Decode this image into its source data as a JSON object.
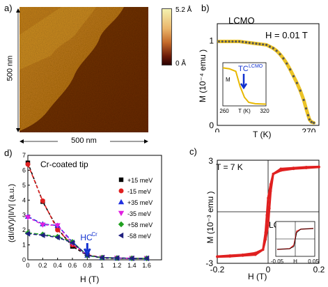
{
  "panel_a": {
    "label": "a)",
    "axis_y_label": "500 nm",
    "axis_x_label": "500 nm",
    "colorbar": {
      "top_label": "5.2 Å",
      "bottom_label": "0 Å"
    },
    "colors": {
      "high": "#f2f0a0",
      "mid": "#e89a2a",
      "low": "#3a0505"
    }
  },
  "panel_b": {
    "label": "b)",
    "title": "LCMO",
    "field_label": "H = 0.01 T",
    "ylabel": "M (10⁻⁴ emu )",
    "xlabel": "T (K)",
    "inset": {
      "ylabel": "M",
      "xlabel": "T (K)",
      "xticks": [
        "260",
        "320"
      ],
      "tc_label": "TC",
      "tc_sup": "LCMO"
    }
  },
  "panel_c": {
    "label": "c)",
    "temp_label": "T = 7 K",
    "sample_label": "LCMO",
    "ylabel": "M (10⁻³ emu )",
    "xlabel": "H (T)",
    "inset": {
      "xlabel": "H",
      "xticks": [
        "-0.05",
        "0.05"
      ]
    }
  },
  "panel_d": {
    "label": "d)",
    "title": "Cr-coated tip",
    "ylabel": "(dI/dV)/|I/V|  (a.u.)",
    "xlabel": "H (T)",
    "annotation": "HC",
    "annotation_sup": "Cr"
  },
  "chart_data": [
    {
      "type": "scatter",
      "panel": "b",
      "title": "LCMO",
      "xlabel": "T (K)",
      "ylabel": "M (10⁻⁴ emu )",
      "xlim": [
        0,
        300
      ],
      "ylim": [
        0,
        1.2
      ],
      "xticks": [
        "0",
        "270"
      ],
      "yticks": [
        "0",
        "1"
      ],
      "series": [
        {
          "x": [
            5,
            15,
            25,
            35,
            45,
            55,
            65,
            75,
            85,
            95,
            105,
            115,
            125,
            135,
            145,
            155,
            165,
            175,
            185,
            195,
            205,
            215,
            225,
            235,
            245,
            255,
            262,
            268,
            272,
            278,
            285
          ],
          "y": [
            0.99,
            0.99,
            0.99,
            0.99,
            0.99,
            0.99,
            0.99,
            0.985,
            0.98,
            0.975,
            0.97,
            0.965,
            0.96,
            0.955,
            0.95,
            0.93,
            0.91,
            0.88,
            0.84,
            0.79,
            0.73,
            0.66,
            0.58,
            0.5,
            0.41,
            0.3,
            0.2,
            0.12,
            0.07,
            0.04,
            0.03
          ]
        }
      ],
      "color": "#e8b800"
    },
    {
      "type": "scatter",
      "panel": "d",
      "xlabel": "H (T)",
      "ylabel": "(dI/dV)/|I/V|  (a.u.)",
      "xlim": [
        0,
        1.8
      ],
      "ylim": [
        0,
        7
      ],
      "xticks": [
        "0",
        "0.2",
        "0.4",
        "0.6",
        "0.8",
        "1",
        "1.2",
        "1.4",
        "1.6"
      ],
      "yticks": [
        "0",
        "1",
        "2",
        "3",
        "4",
        "5",
        "6",
        "7"
      ],
      "x": [
        0,
        0.2,
        0.4,
        0.6,
        0.8,
        1.0,
        1.2,
        1.4,
        1.6
      ],
      "series": [
        {
          "name": "+15 meV",
          "marker": "square",
          "color": "#000000",
          "values": [
            6.5,
            3.9,
            2.1,
            0.9,
            0.3,
            0.12,
            0.1,
            0.1,
            0.1
          ]
        },
        {
          "name": "-15 meV",
          "marker": "circle",
          "color": "#e02020",
          "values": [
            6.4,
            3.95,
            2.0,
            1.0,
            0.35,
            0.15,
            0.12,
            0.1,
            0.1
          ]
        },
        {
          "name": "+35 meV",
          "marker": "triangle-up",
          "color": "#2030e0",
          "values": [
            2.9,
            2.4,
            2.3,
            1.2,
            0.3,
            0.15,
            0.12,
            0.1,
            0.1
          ]
        },
        {
          "name": "-35 meV",
          "marker": "triangle-down",
          "color": "#e020e0",
          "values": [
            2.85,
            2.35,
            2.3,
            1.1,
            0.3,
            0.15,
            0.12,
            0.1,
            0.1
          ]
        },
        {
          "name": "+58 meV",
          "marker": "diamond",
          "color": "#20a020",
          "values": [
            1.8,
            1.7,
            1.55,
            1.2,
            0.3,
            0.15,
            0.12,
            0.1,
            0.1
          ]
        },
        {
          "name": "-58 meV",
          "marker": "triangle-left",
          "color": "#202080",
          "values": [
            1.75,
            1.65,
            1.5,
            1.15,
            0.3,
            0.15,
            0.12,
            0.1,
            0.1
          ]
        }
      ]
    },
    {
      "type": "line",
      "panel": "c",
      "xlabel": "H (T)",
      "ylabel": "M (10⁻³ emu )",
      "xlim": [
        -0.2,
        0.2
      ],
      "ylim": [
        -3,
        3
      ],
      "xticks": [
        "-0.2",
        "0",
        "0.2"
      ],
      "yticks": [
        "-3",
        "3"
      ],
      "color": "#e02020",
      "series": [
        {
          "x": [
            -0.2,
            -0.15,
            -0.1,
            -0.05,
            -0.02,
            -0.01,
            0,
            0.005,
            0.01,
            0.02,
            0.05,
            0.1,
            0.15,
            0.2
          ],
          "y": [
            -2.6,
            -2.55,
            -2.5,
            -2.4,
            -2.2,
            -1.6,
            -0.8,
            0.2,
            1.2,
            2.2,
            2.5,
            2.55,
            2.6,
            2.62
          ]
        }
      ]
    }
  ]
}
